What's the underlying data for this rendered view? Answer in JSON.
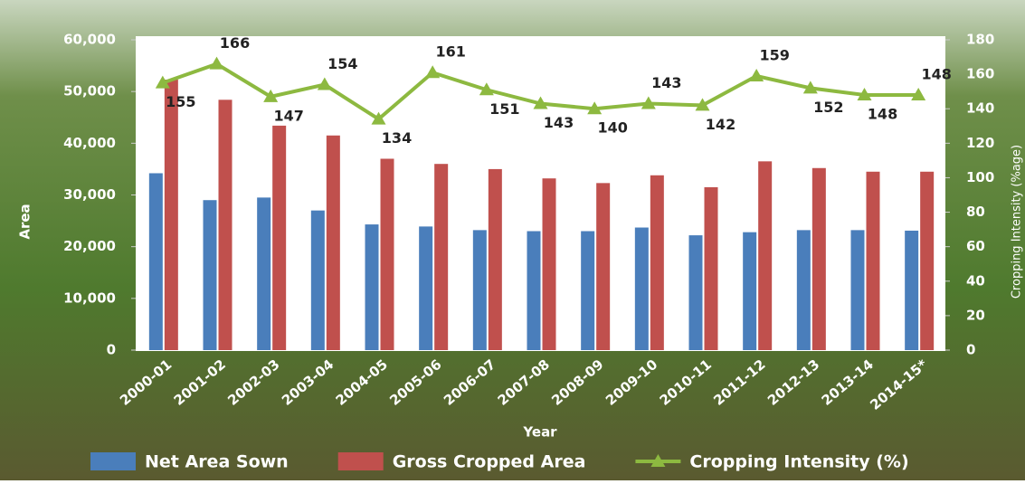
{
  "chart_data": {
    "type": "bar",
    "categories": [
      "2000-01",
      "2001-02",
      "2002-03",
      "2003-04",
      "2004-05",
      "2005-06",
      "2006-07",
      "2007-08",
      "2008-09",
      "2009-10",
      "2010-11",
      "2011-12",
      "2012-13",
      "2013-14",
      "2014-15*"
    ],
    "series": [
      {
        "name": "Net Area Sown",
        "color": "#4a7ebb",
        "values": [
          34200,
          29000,
          29500,
          27000,
          24300,
          23900,
          23200,
          23000,
          23000,
          23700,
          22200,
          22800,
          23200,
          23200,
          23100
        ]
      },
      {
        "name": "Gross Cropped Area",
        "color": "#c0504d",
        "values": [
          52300,
          48400,
          43400,
          41500,
          37000,
          36000,
          35000,
          33200,
          32300,
          33800,
          31500,
          36500,
          35200,
          34500,
          34500
        ]
      },
      {
        "name": "Cropping Intensity (%)",
        "color": "#8db940",
        "type": "line",
        "axis": "y2",
        "values": [
          155,
          166,
          147,
          154,
          134,
          161,
          151,
          143,
          140,
          143,
          142,
          159,
          152,
          148,
          148
        ]
      }
    ],
    "x_label": "Year",
    "y_label": "Area",
    "y2_label": "Cropping Intensity (%age)",
    "ylim": [
      0,
      60000
    ],
    "yticks": [
      0,
      {
        "value": 10000,
        "label": "10,000"
      },
      {
        "value": 20000,
        "label": "20,000"
      },
      {
        "value": 30000,
        "label": "30,000"
      },
      {
        "value": 40000,
        "label": "40,000"
      },
      {
        "value": 50000,
        "label": "50,000"
      },
      {
        "value": 60000,
        "label": "60,000"
      }
    ],
    "y2lim": [
      0,
      180
    ],
    "y2ticks": [
      0,
      20,
      40,
      60,
      80,
      100,
      120,
      140,
      160,
      180
    ],
    "legend": "bottom"
  }
}
